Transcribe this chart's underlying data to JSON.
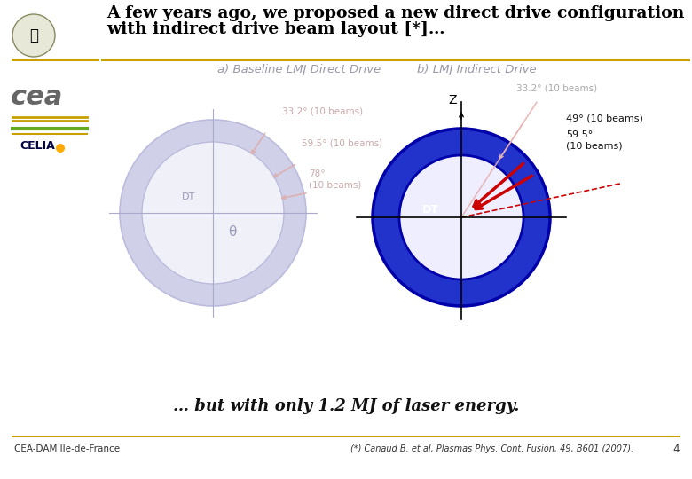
{
  "title_line1": "A few years ago, we proposed a new direct drive configuration",
  "title_line2": "with indirect drive beam layout [*]…",
  "subtitle_a": "a) Baseline LMJ Direct Drive",
  "subtitle_b": "b) LMJ Indirect Drive",
  "bottom_text": "… but with only 1.2 MJ of laser energy.",
  "footer_left": "CEA-DAM Ile-de-France",
  "footer_right": "(*) Canaud B. et al, Plasmas Phys. Cont. Fusion, 49, B601 (2007).",
  "page_num": "4",
  "bg_color": "#ffffff",
  "title_color": "#000000",
  "subtitle_color": "#9999aa",
  "beam_label_color_a": "#ccaaaa",
  "gold_line_color": "#c8a000",
  "green_line_color": "#66aa22",
  "ring_a_outer_color": "#d0d0e8",
  "ring_a_inner_color": "#f0f0f8",
  "ring_b_fill_color": "#2233cc",
  "ring_b_inner_color": "#eeeeff",
  "ring_b_edge_color": "#0000aa",
  "arrow_red": "#cc0000",
  "arrow_pink": "#e8a0a0",
  "label_gray": "#aaaaaa",
  "label_black": "#111111"
}
